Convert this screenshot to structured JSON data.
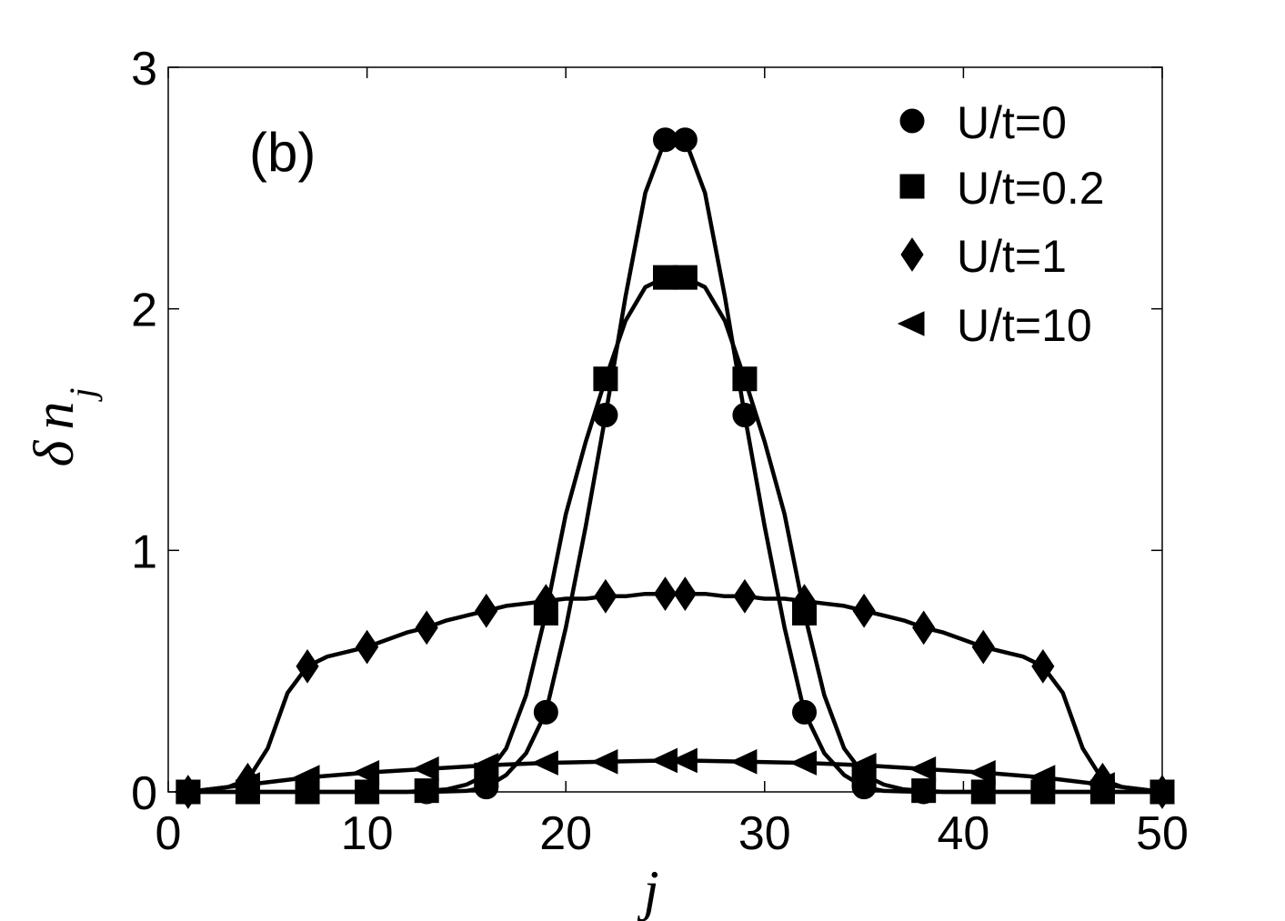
{
  "chart_data": {
    "type": "line",
    "panel_label": "(b)",
    "xlabel": "j",
    "ylabel_symbol": "δ",
    "ylabel_var": "n",
    "ylabel_sub": "j",
    "xlim": [
      0,
      50
    ],
    "ylim": [
      0,
      3
    ],
    "xticks": [
      "0",
      "10",
      "20",
      "30",
      "40",
      "50"
    ],
    "yticks": [
      "0",
      "1",
      "2",
      "3"
    ],
    "grid": false,
    "legend_position": "top-right",
    "series": [
      {
        "name": "U/t=0",
        "marker": "circle",
        "curve_x": [
          1,
          2,
          3,
          4,
          5,
          6,
          7,
          8,
          9,
          10,
          11,
          12,
          13,
          14,
          15,
          16,
          17,
          18,
          19,
          20,
          21,
          22,
          23,
          24,
          25,
          26,
          27,
          28,
          29,
          30,
          31,
          32,
          33,
          34,
          35,
          36,
          37,
          38,
          39,
          40,
          41,
          42,
          43,
          44,
          45,
          46,
          47,
          48,
          49,
          50
        ],
        "curve_y": [
          0,
          0,
          0,
          0,
          0,
          0,
          0,
          0,
          0,
          0,
          0,
          0,
          0,
          0.002,
          0.004,
          0.02,
          0.07,
          0.16,
          0.33,
          0.68,
          1.1,
          1.56,
          2.05,
          2.48,
          2.7,
          2.7,
          2.48,
          2.05,
          1.56,
          1.1,
          0.68,
          0.33,
          0.16,
          0.07,
          0.02,
          0.004,
          0.002,
          0,
          0,
          0,
          0,
          0,
          0,
          0,
          0,
          0,
          0,
          0,
          0,
          0
        ],
        "marker_x": [
          1,
          4,
          7,
          10,
          13,
          16,
          19,
          22,
          25,
          26,
          29,
          32,
          35,
          38,
          41,
          44,
          47,
          50
        ],
        "marker_y": [
          0,
          0,
          0,
          0,
          0,
          0.02,
          0.33,
          1.56,
          2.7,
          2.7,
          1.56,
          0.33,
          0.02,
          0,
          0,
          0,
          0,
          0
        ]
      },
      {
        "name": "U/t=0.2",
        "marker": "square",
        "curve_x": [
          1,
          2,
          3,
          4,
          5,
          6,
          7,
          8,
          9,
          10,
          11,
          12,
          13,
          14,
          15,
          16,
          17,
          18,
          19,
          20,
          21,
          22,
          23,
          24,
          25,
          26,
          27,
          28,
          29,
          30,
          31,
          32,
          33,
          34,
          35,
          36,
          37,
          38,
          39,
          40,
          41,
          42,
          43,
          44,
          45,
          46,
          47,
          48,
          49,
          50
        ],
        "curve_y": [
          0,
          0,
          0,
          0,
          0,
          0,
          0,
          0,
          0,
          0,
          0,
          0,
          0.005,
          0.01,
          0.03,
          0.07,
          0.18,
          0.4,
          0.74,
          1.15,
          1.45,
          1.71,
          1.95,
          2.09,
          2.13,
          2.13,
          2.09,
          1.95,
          1.71,
          1.45,
          1.15,
          0.74,
          0.4,
          0.18,
          0.07,
          0.03,
          0.01,
          0.005,
          0,
          0,
          0,
          0,
          0,
          0,
          0,
          0,
          0,
          0,
          0,
          0
        ],
        "marker_x": [
          1,
          4,
          7,
          10,
          13,
          16,
          19,
          22,
          25,
          26,
          29,
          32,
          35,
          38,
          41,
          44,
          47,
          50
        ],
        "marker_y": [
          0,
          0,
          0,
          0,
          0.005,
          0.07,
          0.74,
          1.71,
          2.13,
          2.13,
          1.71,
          0.74,
          0.07,
          0.005,
          0,
          0,
          0,
          0
        ]
      },
      {
        "name": "U/t=1",
        "marker": "diamond",
        "curve_x": [
          1,
          2,
          3,
          4,
          5,
          6,
          7,
          8,
          9,
          10,
          11,
          12,
          13,
          14,
          15,
          16,
          17,
          18,
          19,
          20,
          21,
          22,
          23,
          24,
          25,
          26,
          27,
          28,
          29,
          30,
          31,
          32,
          33,
          34,
          35,
          36,
          37,
          38,
          39,
          40,
          41,
          42,
          43,
          44,
          45,
          46,
          47,
          48,
          49,
          50
        ],
        "curve_y": [
          0,
          0.01,
          0.02,
          0.05,
          0.18,
          0.41,
          0.52,
          0.56,
          0.58,
          0.6,
          0.63,
          0.66,
          0.68,
          0.71,
          0.73,
          0.75,
          0.77,
          0.78,
          0.79,
          0.8,
          0.8,
          0.81,
          0.81,
          0.82,
          0.82,
          0.82,
          0.82,
          0.81,
          0.81,
          0.8,
          0.8,
          0.79,
          0.78,
          0.77,
          0.75,
          0.73,
          0.71,
          0.68,
          0.66,
          0.63,
          0.6,
          0.58,
          0.56,
          0.52,
          0.41,
          0.18,
          0.05,
          0.02,
          0.01,
          0
        ],
        "marker_x": [
          1,
          4,
          7,
          10,
          13,
          16,
          19,
          22,
          25,
          26,
          29,
          32,
          35,
          38,
          41,
          44,
          47,
          50
        ],
        "marker_y": [
          0,
          0.05,
          0.52,
          0.6,
          0.68,
          0.75,
          0.79,
          0.81,
          0.82,
          0.82,
          0.81,
          0.79,
          0.75,
          0.68,
          0.6,
          0.52,
          0.05,
          0
        ]
      },
      {
        "name": "U/t=10",
        "marker": "triangle-left",
        "curve_x": [
          1,
          4,
          7,
          10,
          13,
          16,
          19,
          22,
          25,
          26,
          29,
          32,
          35,
          38,
          41,
          44,
          47,
          50
        ],
        "curve_y": [
          0,
          0.03,
          0.06,
          0.08,
          0.095,
          0.11,
          0.12,
          0.125,
          0.13,
          0.13,
          0.125,
          0.12,
          0.11,
          0.095,
          0.08,
          0.06,
          0.03,
          0
        ],
        "marker_x": [
          1,
          4,
          7,
          10,
          13,
          16,
          19,
          22,
          25,
          26,
          29,
          32,
          35,
          38,
          41,
          44,
          47,
          50
        ],
        "marker_y": [
          0,
          0.03,
          0.06,
          0.08,
          0.095,
          0.11,
          0.12,
          0.125,
          0.13,
          0.13,
          0.125,
          0.12,
          0.11,
          0.095,
          0.08,
          0.06,
          0.03,
          0
        ]
      }
    ]
  }
}
